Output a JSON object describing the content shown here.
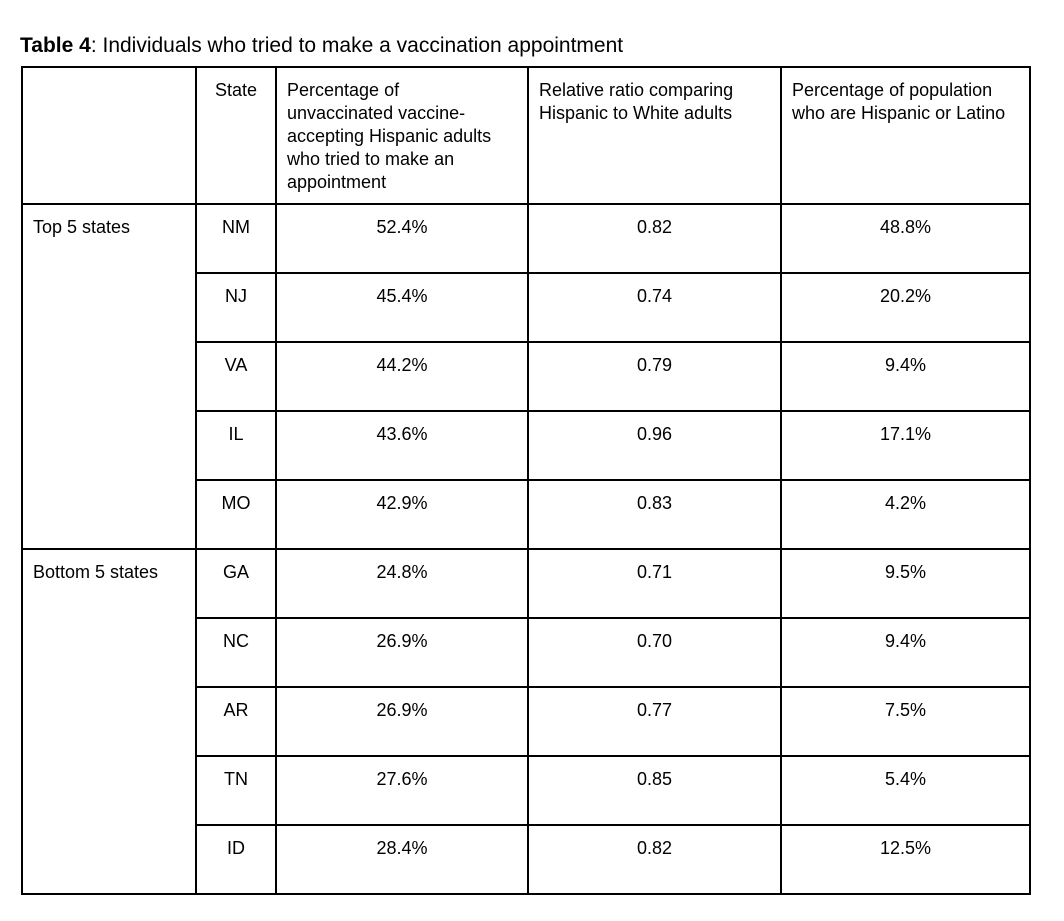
{
  "page": {
    "background_color": "#ffffff",
    "text_color": "#000000",
    "table_border_color": "#000000"
  },
  "caption": {
    "bold": "Table 4",
    "rest": ": Individuals who tried to make a vaccination appointment"
  },
  "table": {
    "headers": [
      "",
      "State",
      "Percentage of unvaccinated vaccine-accepting Hispanic adults who tried to make an appointment",
      "Relative ratio comparing Hispanic to White adults",
      "Percentage of population who are Hispanic or Latino"
    ],
    "groups": [
      {
        "label": "Top 5 states",
        "rows": [
          {
            "state": "NM",
            "pct_tried": "52.4%",
            "relative_ratio": "0.82",
            "pct_population": "48.8%"
          },
          {
            "state": "NJ",
            "pct_tried": "45.4%",
            "relative_ratio": "0.74",
            "pct_population": "20.2%"
          },
          {
            "state": "VA",
            "pct_tried": "44.2%",
            "relative_ratio": "0.79",
            "pct_population": "9.4%"
          },
          {
            "state": "IL",
            "pct_tried": "43.6%",
            "relative_ratio": "0.96",
            "pct_population": "17.1%"
          },
          {
            "state": "MO",
            "pct_tried": "42.9%",
            "relative_ratio": "0.83",
            "pct_population": "4.2%"
          }
        ]
      },
      {
        "label": "Bottom 5 states",
        "rows": [
          {
            "state": "GA",
            "pct_tried": "24.8%",
            "relative_ratio": "0.71",
            "pct_population": "9.5%"
          },
          {
            "state": "NC",
            "pct_tried": "26.9%",
            "relative_ratio": "0.70",
            "pct_population": "9.4%"
          },
          {
            "state": "AR",
            "pct_tried": "26.9%",
            "relative_ratio": "0.77",
            "pct_population": "7.5%"
          },
          {
            "state": "TN",
            "pct_tried": "27.6%",
            "relative_ratio": "0.85",
            "pct_population": "5.4%"
          },
          {
            "state": "ID",
            "pct_tried": "28.4%",
            "relative_ratio": "0.82",
            "pct_population": "12.5%"
          }
        ]
      }
    ]
  }
}
